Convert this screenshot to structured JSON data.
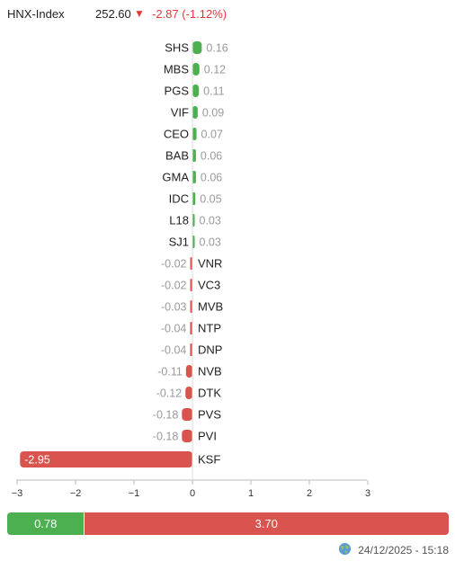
{
  "header": {
    "index_name": "HNX-Index",
    "value": "252.60",
    "change": "-2.87 (-1.12%)",
    "arrow": "▼"
  },
  "colors": {
    "up": "#4caf50",
    "down": "#d9534f",
    "label_up": "#9a9a9a",
    "label_down": "#9a9a9a"
  },
  "chart_data": {
    "type": "bar",
    "orientation": "horizontal",
    "categories": [
      "SHS",
      "MBS",
      "PGS",
      "VIF",
      "CEO",
      "BAB",
      "GMA",
      "IDC",
      "L18",
      "SJ1",
      "VNR",
      "VC3",
      "MVB",
      "NTP",
      "DNP",
      "NVB",
      "DTK",
      "PVS",
      "PVI",
      "KSF"
    ],
    "values": [
      0.16,
      0.12,
      0.11,
      0.09,
      0.07,
      0.06,
      0.06,
      0.05,
      0.03,
      0.03,
      -0.02,
      -0.02,
      -0.03,
      -0.04,
      -0.04,
      -0.11,
      -0.12,
      -0.18,
      -0.18,
      -2.95
    ],
    "value_labels": [
      "0.16",
      "0.12",
      "0.11",
      "0.09",
      "0.07",
      "0.06",
      "0.06",
      "0.05",
      "0.03",
      "0.03",
      "-0.02",
      "-0.02",
      "-0.03",
      "-0.04",
      "-0.04",
      "-0.11",
      "-0.12",
      "-0.18",
      "-0.18",
      "-2.95"
    ],
    "xlim": [
      -3,
      3
    ],
    "xticks": [
      -3,
      -2,
      -1,
      0,
      1,
      2,
      3
    ],
    "xtick_labels": [
      "−3",
      "−2",
      "−1",
      "0",
      "1",
      "2",
      "3"
    ],
    "grid": false
  },
  "breadth": {
    "advance": "0.78",
    "decline": "3.70",
    "advance_value": 0.78,
    "decline_value": 3.7
  },
  "footer": {
    "timestamp": "24/12/2025 - 15:18",
    "icon": "globe-icon"
  }
}
